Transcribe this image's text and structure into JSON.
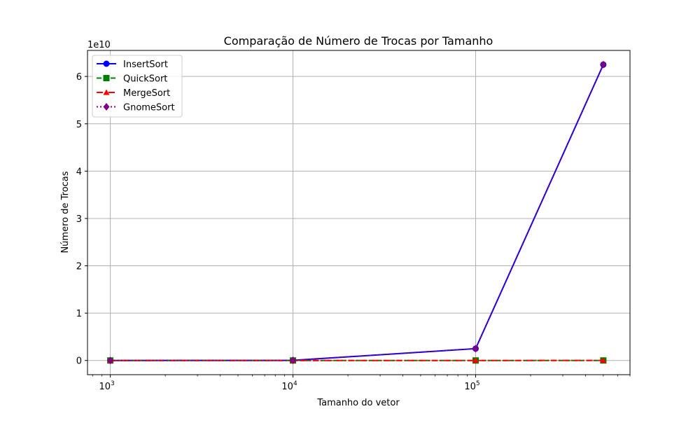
{
  "chart_data": {
    "type": "line",
    "title": "Comparação de Número de Trocas por Tamanho",
    "xlabel": "Tamanho do vetor",
    "ylabel": "Número de Trocas",
    "x_scale": "log",
    "x_ticks": [
      {
        "value": 1000,
        "base": "10",
        "exp": "3"
      },
      {
        "value": 10000,
        "base": "10",
        "exp": "4"
      },
      {
        "value": 100000,
        "base": "10",
        "exp": "5"
      }
    ],
    "xlim": [
      750,
      700000
    ],
    "y_offset_label": "1e10",
    "y_ticks": [
      "0",
      "1",
      "2",
      "3",
      "4",
      "5",
      "6"
    ],
    "y_scale_factor": 10000000000,
    "ylim": [
      -3000000000,
      65500000000
    ],
    "grid": true,
    "legend_position": "top-left",
    "x": [
      1000,
      10000,
      100000,
      500000
    ],
    "series": [
      {
        "name": "InsertSort",
        "color": "#0000ff",
        "marker": "circle",
        "linestyle": "solid",
        "values": [
          250000,
          25000000,
          2500000000,
          62500000000
        ]
      },
      {
        "name": "QuickSort",
        "color": "#008000",
        "marker": "square",
        "linestyle": "dashed",
        "values": [
          5000,
          70000,
          850000,
          5000000
        ]
      },
      {
        "name": "MergeSort",
        "color": "#ff0000",
        "marker": "triangle",
        "linestyle": "dashdot",
        "values": [
          10000,
          130000,
          1700000,
          9500000
        ]
      },
      {
        "name": "GnomeSort",
        "color": "#800080",
        "marker": "diamond",
        "linestyle": "dotted",
        "values": [
          250000,
          25000000,
          2500000000,
          62500000000
        ]
      }
    ]
  }
}
